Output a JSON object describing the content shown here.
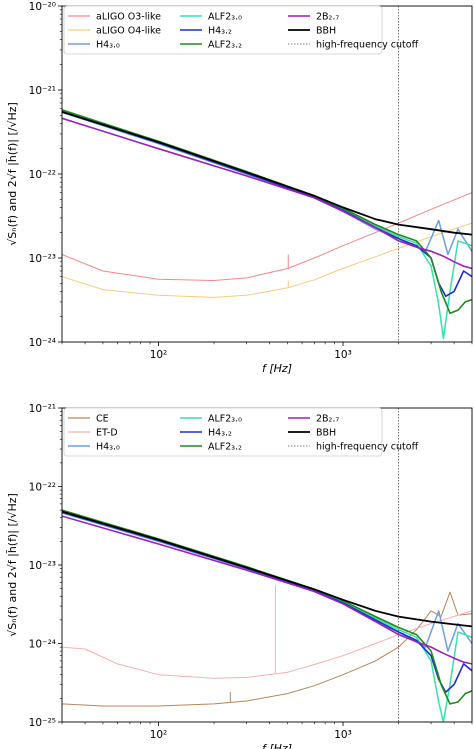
{
  "chart_data": [
    {
      "type": "line",
      "xlabel": "f [Hz]",
      "ylabel": "√Sₙ(f) and 2√f |h̃(f)| [/√Hz]",
      "xscale": "log",
      "yscale": "log",
      "xlim": [
        30,
        5000
      ],
      "ylim": [
        1e-24,
        1e-20
      ],
      "x_ticks": [
        "10²",
        "10³"
      ],
      "y_ticks": [
        "10⁻²⁴",
        "10⁻²³",
        "10⁻²²",
        "10⁻²¹",
        "10⁻²⁰"
      ],
      "cutoff_hz": 2000,
      "legend_position": "top",
      "series": [
        {
          "name": "aLIGO O3-like",
          "color": "#f08a8a",
          "width": 1.0,
          "x": [
            30,
            50,
            100,
            200,
            300,
            500,
            700,
            1000,
            2000,
            3000,
            5000
          ],
          "y": [
            1.1e-23,
            7e-24,
            5.6e-24,
            5.4e-24,
            5.8e-24,
            7.5e-24,
            1e-23,
            1.4e-23,
            2.6e-23,
            3.8e-23,
            6e-23
          ]
        },
        {
          "name": "aLIGO O4-like",
          "color": "#f6cc84",
          "width": 1.0,
          "x": [
            30,
            50,
            100,
            200,
            300,
            500,
            700,
            1000,
            2000,
            3000,
            5000
          ],
          "y": [
            6e-24,
            4.2e-24,
            3.6e-24,
            3.4e-24,
            3.6e-24,
            4.4e-24,
            5.5e-24,
            7.5e-24,
            1.3e-23,
            1.8e-23,
            2.6e-23
          ]
        },
        {
          "name": "H4₃.₀",
          "color": "#6f9fdc",
          "width": 1.5,
          "x": [
            30,
            100,
            300,
            700,
            1000,
            1500,
            2000,
            2400,
            2800,
            3300,
            3700,
            4200,
            5000
          ],
          "y": [
            5.4e-22,
            2.3e-22,
            1e-22,
            5.2e-23,
            3.6e-23,
            2.2e-23,
            1.7e-23,
            1.4e-23,
            1.2e-23,
            2.8e-23,
            1.1e-23,
            2.2e-23,
            1.2e-23
          ]
        },
        {
          "name": "ALF2₃.₀",
          "color": "#36e0a8",
          "width": 1.5,
          "x": [
            30,
            100,
            300,
            700,
            1000,
            1500,
            2000,
            2500,
            3000,
            3300,
            3500,
            3800,
            4200,
            5000
          ],
          "y": [
            5.6e-22,
            2.4e-22,
            1.05e-22,
            5.4e-23,
            3.8e-23,
            2.4e-23,
            1.8e-23,
            1.5e-23,
            8e-24,
            2.8e-24,
            1.1e-24,
            4e-24,
            1.6e-23,
            1.4e-23
          ]
        },
        {
          "name": "H4₃.₂",
          "color": "#1f2fcc",
          "width": 1.6,
          "x": [
            30,
            100,
            300,
            700,
            1000,
            1500,
            2000,
            2500,
            3000,
            3300,
            3600,
            4000,
            4500,
            5000
          ],
          "y": [
            5.5e-22,
            2.35e-22,
            1.02e-22,
            5.3e-23,
            3.7e-23,
            2.3e-23,
            1.7e-23,
            1.4e-23,
            1e-23,
            5e-24,
            3.5e-24,
            4e-24,
            7e-24,
            6e-24
          ]
        },
        {
          "name": "ALF2₃.₂",
          "color": "#1e8a1e",
          "width": 1.6,
          "x": [
            30,
            100,
            300,
            700,
            1000,
            1500,
            2000,
            2500,
            3000,
            3400,
            3800,
            4200,
            4600,
            5000
          ],
          "y": [
            5.8e-22,
            2.45e-22,
            1.07e-22,
            5.5e-23,
            3.9e-23,
            2.5e-23,
            1.9e-23,
            1.6e-23,
            1e-23,
            4e-24,
            2.2e-24,
            2.4e-24,
            3e-24,
            3.2e-24
          ]
        },
        {
          "name": "2B₂.₇",
          "color": "#9b1fb8",
          "width": 1.6,
          "x": [
            30,
            100,
            300,
            700,
            1000,
            1500,
            2000,
            2500,
            3000,
            3500,
            4000,
            4500,
            5000
          ],
          "y": [
            4.6e-22,
            2e-22,
            9.5e-23,
            5.2e-23,
            3.6e-23,
            2.3e-23,
            1.6e-23,
            1.35e-23,
            1.2e-23,
            1.05e-23,
            9e-24,
            8e-24,
            7.5e-24
          ]
        },
        {
          "name": "BBH",
          "color": "#000000",
          "width": 1.8,
          "x": [
            30,
            100,
            300,
            700,
            1000,
            1500,
            2000,
            3000,
            4000,
            5000
          ],
          "y": [
            5.5e-22,
            2.4e-22,
            1.05e-22,
            5.5e-23,
            4e-23,
            2.9e-23,
            2.5e-23,
            2.2e-23,
            2e-23,
            1.9e-23
          ]
        },
        {
          "name": "high-frequency cutoff",
          "color": "#555555",
          "width": 0.8,
          "dashed": true,
          "x": [],
          "y": []
        }
      ],
      "spikes": [
        {
          "series": "aLIGO O3-like",
          "x": 505,
          "y0": 7.3e-24,
          "y1": 1.1e-23
        },
        {
          "series": "aLIGO O4-like",
          "x": 505,
          "y0": 4.4e-24,
          "y1": 5.4e-24
        }
      ]
    },
    {
      "type": "line",
      "xlabel": "f [Hz]",
      "ylabel": "√Sₙ(f) and 2√f |h̃(f)| [/√Hz]",
      "xscale": "log",
      "yscale": "log",
      "xlim": [
        30,
        5000
      ],
      "ylim": [
        1e-25,
        1e-21
      ],
      "x_ticks": [
        "10²",
        "10³"
      ],
      "y_ticks": [
        "10⁻²⁵",
        "10⁻²⁴",
        "10⁻²³",
        "10⁻²²",
        "10⁻²¹"
      ],
      "cutoff_hz": 2000,
      "legend_position": "top",
      "series": [
        {
          "name": "CE",
          "color": "#b5865a",
          "width": 1.0,
          "x": [
            30,
            50,
            100,
            200,
            300,
            500,
            700,
            1000,
            1500,
            2000,
            2500,
            3000,
            3400,
            3800,
            4200,
            5000
          ],
          "y": [
            1.7e-25,
            1.6e-25,
            1.6e-25,
            1.7e-25,
            1.85e-25,
            2.3e-25,
            2.9e-25,
            4e-25,
            6e-25,
            9e-25,
            1.5e-24,
            2.6e-24,
            2.2e-24,
            4.5e-24,
            2.3e-24,
            2.4e-24
          ]
        },
        {
          "name": "ET-D",
          "color": "#f5b0b0",
          "width": 1.0,
          "x": [
            30,
            40,
            60,
            100,
            200,
            300,
            500,
            700,
            1000,
            1500,
            2000,
            3000,
            5000
          ],
          "y": [
            9e-25,
            8.5e-25,
            5.5e-25,
            4e-25,
            3.6e-25,
            3.7e-25,
            4.3e-25,
            5.4e-25,
            7e-25,
            1e-24,
            1.3e-24,
            1.8e-24,
            2.6e-24
          ]
        },
        {
          "name": "H4₃.₀",
          "color": "#6f9fdc",
          "width": 1.5,
          "x": [
            30,
            100,
            300,
            700,
            1000,
            1500,
            2000,
            2400,
            2800,
            3300,
            3700,
            4200,
            5000
          ],
          "y": [
            4.6e-23,
            2e-23,
            9e-24,
            4.6e-24,
            3.2e-24,
            1.9e-24,
            1.4e-24,
            1.1e-24,
            9e-25,
            2.6e-24,
            8e-25,
            1.8e-24,
            1e-24
          ]
        },
        {
          "name": "ALF2₃.₀",
          "color": "#36e0a8",
          "width": 1.5,
          "x": [
            30,
            100,
            300,
            700,
            1000,
            1500,
            2000,
            2500,
            3000,
            3300,
            3500,
            3800,
            4200,
            5000
          ],
          "y": [
            4.8e-23,
            2.1e-23,
            9.3e-24,
            4.8e-24,
            3.4e-24,
            2.1e-24,
            1.5e-24,
            1.2e-24,
            6e-25,
            1.8e-25,
            1e-25,
            3e-25,
            1.4e-24,
            1.2e-24
          ]
        },
        {
          "name": "H4₃.₂",
          "color": "#1f2fcc",
          "width": 1.6,
          "x": [
            30,
            100,
            300,
            700,
            1000,
            1500,
            2000,
            2500,
            3000,
            3300,
            3600,
            4000,
            4500,
            5000
          ],
          "y": [
            4.7e-23,
            2.05e-23,
            9.1e-24,
            4.7e-24,
            3.3e-24,
            2e-24,
            1.4e-24,
            1.1e-24,
            7e-25,
            3.5e-25,
            2.4e-25,
            3e-25,
            5.5e-25,
            4.5e-25
          ]
        },
        {
          "name": "ALF2₃.₂",
          "color": "#1e8a1e",
          "width": 1.6,
          "x": [
            30,
            100,
            300,
            700,
            1000,
            1500,
            2000,
            2500,
            3000,
            3400,
            3800,
            4200,
            4600,
            5000
          ],
          "y": [
            5e-23,
            2.15e-23,
            9.5e-24,
            4.9e-24,
            3.5e-24,
            2.2e-24,
            1.6e-24,
            1.3e-24,
            8e-25,
            3e-25,
            1.7e-25,
            1.8e-25,
            2.3e-25,
            2.5e-25
          ]
        },
        {
          "name": "2B₂.₇",
          "color": "#9b1fb8",
          "width": 1.6,
          "x": [
            30,
            100,
            300,
            700,
            1000,
            1500,
            2000,
            2500,
            3000,
            3500,
            4000,
            4500,
            5000
          ],
          "y": [
            4.2e-23,
            1.85e-23,
            8.6e-24,
            4.6e-24,
            3.2e-24,
            1.9e-24,
            1.3e-24,
            1.05e-24,
            9e-25,
            7.5e-25,
            6.5e-25,
            5.8e-25,
            5.5e-25
          ]
        },
        {
          "name": "BBH",
          "color": "#000000",
          "width": 1.8,
          "x": [
            30,
            100,
            300,
            700,
            1000,
            1500,
            2000,
            3000,
            4000,
            5000
          ],
          "y": [
            4.8e-23,
            2.1e-23,
            9.3e-24,
            4.9e-24,
            3.6e-24,
            2.6e-24,
            2.2e-24,
            1.9e-24,
            1.75e-24,
            1.65e-24
          ]
        },
        {
          "name": "high-frequency cutoff",
          "color": "#555555",
          "width": 0.8,
          "dashed": true,
          "x": [],
          "y": []
        }
      ],
      "spikes": [
        {
          "series": "ET-D",
          "x": 430,
          "y0": 4.2e-25,
          "y1": 5.5e-24
        },
        {
          "series": "CE",
          "x": 245,
          "y0": 1.75e-25,
          "y1": 2.4e-25
        }
      ]
    }
  ]
}
